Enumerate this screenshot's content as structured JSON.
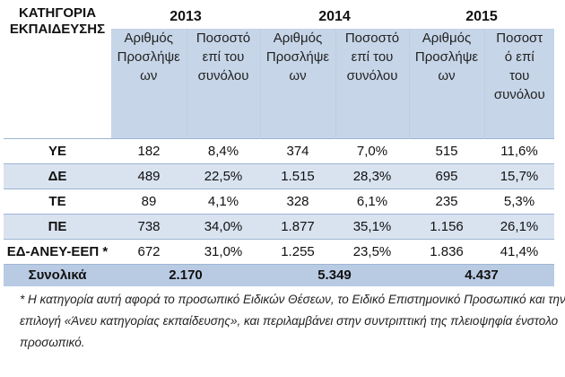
{
  "header": {
    "category_label_line1": "ΚΑΤΗΓΟΡΙΑ",
    "category_label_line2": "ΕΚΠΑΙΔΕΥΣΗΣ",
    "years": [
      "2013",
      "2014",
      "2015"
    ]
  },
  "subheaders": {
    "count_lines": [
      "Αριθμός",
      "Προσλήψε",
      "ων"
    ],
    "percent_lines": [
      "Ποσοστό",
      "επί του",
      "συνόλου"
    ],
    "percent_lines_2015": [
      "Ποσοστ",
      "ό επί",
      "του",
      "συνόλου"
    ]
  },
  "rows": [
    {
      "category": "ΥΕ",
      "values": [
        "182",
        "8,4%",
        "374",
        "7,0%",
        "515",
        "11,6%"
      ]
    },
    {
      "category": "ΔΕ",
      "values": [
        "489",
        "22,5%",
        "1.515",
        "28,3%",
        "695",
        "15,7%"
      ]
    },
    {
      "category": "ΤΕ",
      "values": [
        "89",
        "4,1%",
        "328",
        "6,1%",
        "235",
        "5,3%"
      ]
    },
    {
      "category": "ΠΕ",
      "values": [
        "738",
        "34,0%",
        "1.877",
        "35,1%",
        "1.156",
        "26,1%"
      ]
    },
    {
      "category": "ΕΔ-ΑΝΕΥ-ΕΕΠ *",
      "values": [
        "672",
        "31,0%",
        "1.255",
        "23,5%",
        "1.836",
        "41,4%"
      ]
    }
  ],
  "totals": {
    "label": "Συνολικά",
    "values": [
      "2.170",
      "5.349",
      "4.437"
    ]
  },
  "footnote": {
    "line1": "* Η κατηγορία αυτή αφορά το προσωπικό Ειδικών Θέσεων, το Ειδικό Επιστημονικό Προσωπικό και την",
    "line2": "επιλογή «Άνευ κατηγορίας εκπαίδευσης», και περιλαμβάνει στην συντριπτική της πλειοψηφία ένστολο",
    "line3": "προσωπικό."
  }
}
